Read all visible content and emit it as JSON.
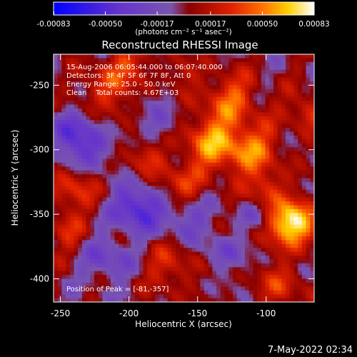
{
  "chart_data": {
    "type": "heatmap",
    "title": "Reconstructed RHESSI Image",
    "xlabel": "Heliocentric X (arcsec)",
    "ylabel": "Heliocentric Y (arcsec)",
    "xlim": [
      -255,
      -65
    ],
    "ylim": [
      -418,
      -226
    ],
    "x_ticks": [
      -250,
      -200,
      -150,
      -100
    ],
    "y_ticks": [
      -250,
      -300,
      -350,
      -400
    ],
    "colorbar": {
      "range": [
        -0.00083,
        0.00083
      ],
      "ticks": [
        -0.00083,
        -0.0005,
        -0.00017,
        0.00017,
        0.0005,
        0.00083
      ],
      "tick_labels": [
        "-0.00083",
        "-0.00050",
        "-0.00017",
        "0.00017",
        "0.00050",
        "0.00083"
      ],
      "label": "(photons cm⁻² s⁻¹ asec⁻²)"
    },
    "annotations": [
      "15-Aug-2006 06:05:44.000 to 06:07:40.000",
      "Detectors: 3F 4F 5F 6F 7F 8F, Att 0",
      "Energy Range: 25.0 - 50.0 keV",
      "Clean    Total counts: 4.67E+03"
    ],
    "peak_label": "Position of Peak = [-81,-357]",
    "peak": [
      -81,
      -357
    ],
    "grid": false
  },
  "footer": {
    "date": "7-May-2022 02:34"
  }
}
